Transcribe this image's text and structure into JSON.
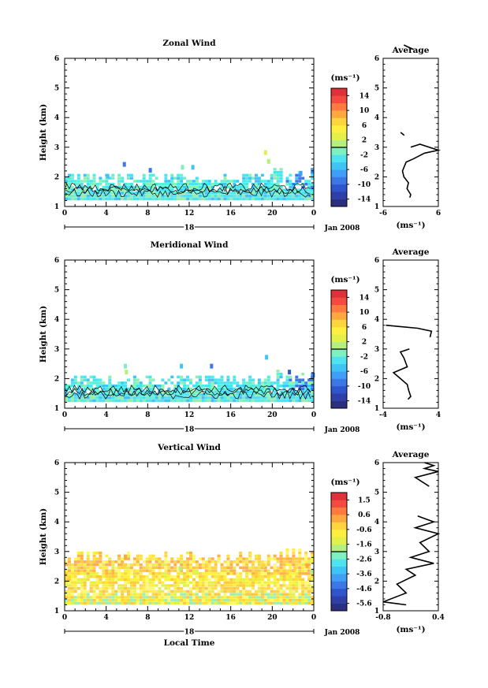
{
  "chart_data": [
    {
      "type": "heatmap",
      "title": "Zonal Wind",
      "ylabel": "Height (km)",
      "xticks": [
        "0",
        "4",
        "8",
        "12",
        "16",
        "20",
        "0"
      ],
      "yticks": [
        "1",
        "2",
        "3",
        "4",
        "5",
        "6"
      ],
      "xlim": [
        0,
        24
      ],
      "ylim": [
        1,
        6
      ],
      "day_label": "18",
      "date_label": "Jan 2008",
      "colorbar": {
        "unit": "(ms⁻¹)",
        "ticks": [
          "14",
          "10",
          "6",
          "2",
          "-2",
          "-6",
          "-10",
          "-14"
        ],
        "range": [
          -16,
          16
        ],
        "colors": [
          "#2b2f80",
          "#2f3fa8",
          "#2f55cc",
          "#3d77e6",
          "#3f9ef5",
          "#3fc5f5",
          "#4fe3f0",
          "#7ff0c0",
          "#b4f080",
          "#e4f04a",
          "#fff040",
          "#ffd53f",
          "#ffa83f",
          "#ff7a3f",
          "#f54a3f",
          "#e0303a"
        ]
      },
      "profile": {
        "title": "Average",
        "xticks": [
          "-6",
          "6"
        ],
        "xlim": [
          -6,
          6
        ],
        "xlabel": "(ms⁻¹)",
        "points": [
          [
            0.6,
            6.3
          ],
          [
            -0.8,
            6.4
          ],
          [
            -1.5,
            6.45
          ],
          [
            null,
            null
          ],
          [
            -2.2,
            3.5
          ],
          [
            -1.4,
            3.4
          ],
          [
            null,
            null
          ],
          [
            0,
            3.0
          ],
          [
            2,
            3.1
          ],
          [
            6,
            2.9
          ],
          [
            3,
            2.8
          ],
          [
            0.5,
            2.6
          ],
          [
            -1,
            2.5
          ],
          [
            -1.8,
            2.2
          ],
          [
            -1.5,
            2.0
          ],
          [
            -0.5,
            1.8
          ],
          [
            -0.8,
            1.6
          ],
          [
            0,
            1.4
          ],
          [
            -0.2,
            1.3
          ]
        ]
      }
    },
    {
      "type": "heatmap",
      "title": "Meridional Wind",
      "ylabel": "Height (km)",
      "xticks": [
        "0",
        "4",
        "8",
        "12",
        "16",
        "20",
        "0"
      ],
      "yticks": [
        "1",
        "2",
        "3",
        "4",
        "5",
        "6"
      ],
      "xlim": [
        0,
        24
      ],
      "ylim": [
        1,
        6
      ],
      "day_label": "18",
      "date_label": "Jan 2008",
      "colorbar": {
        "unit": "(ms⁻¹)",
        "ticks": [
          "14",
          "10",
          "6",
          "2",
          "-2",
          "-6",
          "-10",
          "-14"
        ],
        "range": [
          -16,
          16
        ],
        "colors": [
          "#2b2f80",
          "#2f3fa8",
          "#2f55cc",
          "#3d77e6",
          "#3f9ef5",
          "#3fc5f5",
          "#4fe3f0",
          "#7ff0c0",
          "#b4f080",
          "#e4f04a",
          "#fff040",
          "#ffd53f",
          "#ffa83f",
          "#ff7a3f",
          "#f54a3f",
          "#e0303a"
        ]
      },
      "profile": {
        "title": "Average",
        "xticks": [
          "-4",
          "4"
        ],
        "xlim": [
          -4,
          4
        ],
        "xlabel": "(ms⁻¹)",
        "points": [
          [
            -3.6,
            3.8
          ],
          [
            1,
            3.7
          ],
          [
            3,
            3.6
          ],
          [
            2.8,
            3.4
          ],
          [
            null,
            null
          ],
          [
            -0.2,
            3.0
          ],
          [
            -1.5,
            2.9
          ],
          [
            -1,
            2.7
          ],
          [
            -0.5,
            2.4
          ],
          [
            -2.5,
            2.2
          ],
          [
            -1.5,
            2.0
          ],
          [
            -0.5,
            1.8
          ],
          [
            -0.3,
            1.6
          ],
          [
            0,
            1.4
          ],
          [
            -0.4,
            1.3
          ]
        ]
      }
    },
    {
      "type": "heatmap",
      "title": "Vertical Wind",
      "ylabel": "Height (km)",
      "xlabel": "Local Time",
      "xticks": [
        "0",
        "4",
        "8",
        "12",
        "16",
        "20",
        "0"
      ],
      "yticks": [
        "1",
        "2",
        "3",
        "4",
        "5",
        "6"
      ],
      "xlim": [
        0,
        24
      ],
      "ylim": [
        1,
        6
      ],
      "day_label": "18",
      "date_label": "Jan 2008",
      "colorbar": {
        "unit": "(ms⁻¹)",
        "ticks": [
          "1.5",
          "0.6",
          "-0.6",
          "-1.6",
          "-2.6",
          "-3.6",
          "-4.6",
          "-5.6"
        ],
        "range": [
          -6,
          2
        ],
        "colors": [
          "#2b2f80",
          "#2f3fa8",
          "#2f55cc",
          "#3d77e6",
          "#3f9ef5",
          "#3fc5f5",
          "#4fe3f0",
          "#7ff0c0",
          "#b4f080",
          "#e4f04a",
          "#fff040",
          "#ffd53f",
          "#ffa83f",
          "#ff7a3f",
          "#f54a3f",
          "#e0303a"
        ]
      },
      "profile": {
        "title": "Average",
        "xticks": [
          "-0.8",
          "0.4"
        ],
        "xlim": [
          -0.8,
          0.4
        ],
        "xlabel": "(ms⁻¹)",
        "points": [
          [
            0.1,
            6.0
          ],
          [
            0.3,
            5.9
          ],
          [
            0.1,
            5.8
          ],
          [
            0.4,
            5.7
          ],
          [
            -0.1,
            5.5
          ],
          [
            0.2,
            5.2
          ],
          [
            null,
            null
          ],
          [
            0.15,
            4.9
          ],
          [
            null,
            null
          ],
          [
            -0.05,
            4.2
          ],
          [
            0.3,
            4.0
          ],
          [
            -0.1,
            3.8
          ],
          [
            0.4,
            3.6
          ],
          [
            0.0,
            3.3
          ],
          [
            0.2,
            3.0
          ],
          [
            -0.2,
            2.8
          ],
          [
            0.3,
            2.6
          ],
          [
            -0.3,
            2.4
          ],
          [
            -0.1,
            2.2
          ],
          [
            -0.5,
            1.9
          ],
          [
            -0.3,
            1.6
          ],
          [
            -0.8,
            1.3
          ],
          [
            -0.3,
            1.2
          ]
        ]
      }
    }
  ]
}
